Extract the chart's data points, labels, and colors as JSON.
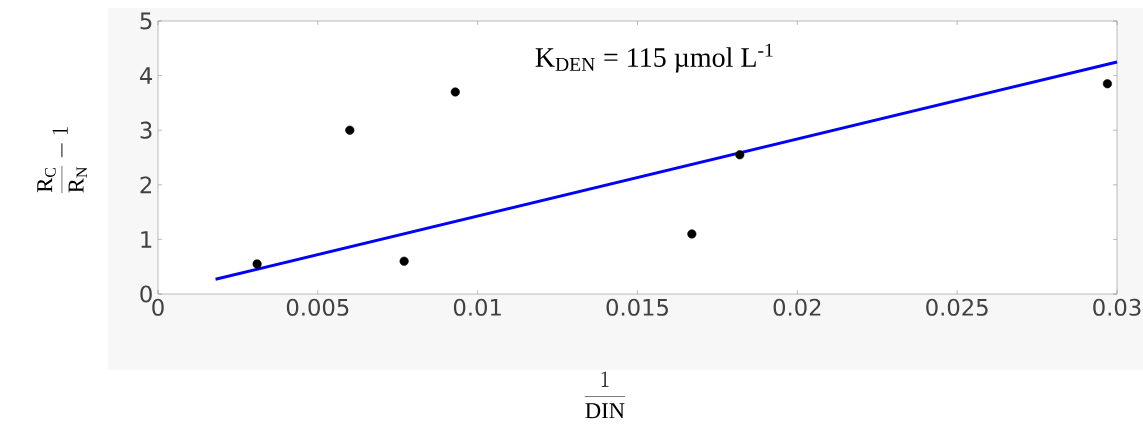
{
  "chart_data": {
    "type": "scatter",
    "xlabel": "\\frac{1}{\\mathrm{DIN}}",
    "ylabel": "\\frac{\\mathrm{R_C}}{\\mathrm{R_N}} - 1",
    "annotations": [
      "K$_{DEN}$ = 115 µmol L$^{-1}$"
    ],
    "marker": "circle",
    "xlim": [
      0,
      0.03
    ],
    "ylim": [
      0,
      5
    ],
    "xticks": [
      0,
      0.005,
      0.01,
      0.015,
      0.02,
      0.025,
      0.03
    ],
    "yticks": [
      0,
      1,
      2,
      3,
      4,
      5
    ],
    "series": [
      {
        "type": "scatter",
        "color": "#000000",
        "x": [
          0.0031,
          0.006,
          0.0077,
          0.0093,
          0.0167,
          0.0182,
          0.0297
        ],
        "values": [
          0.55,
          3.0,
          0.6,
          3.7,
          1.1,
          2.55,
          3.85
        ]
      },
      {
        "type": "line",
        "marker": "none",
        "color": "#0000ff",
        "x": [
          0.0018,
          0.03
        ],
        "values": [
          0.27,
          4.25
        ]
      }
    ]
  }
}
